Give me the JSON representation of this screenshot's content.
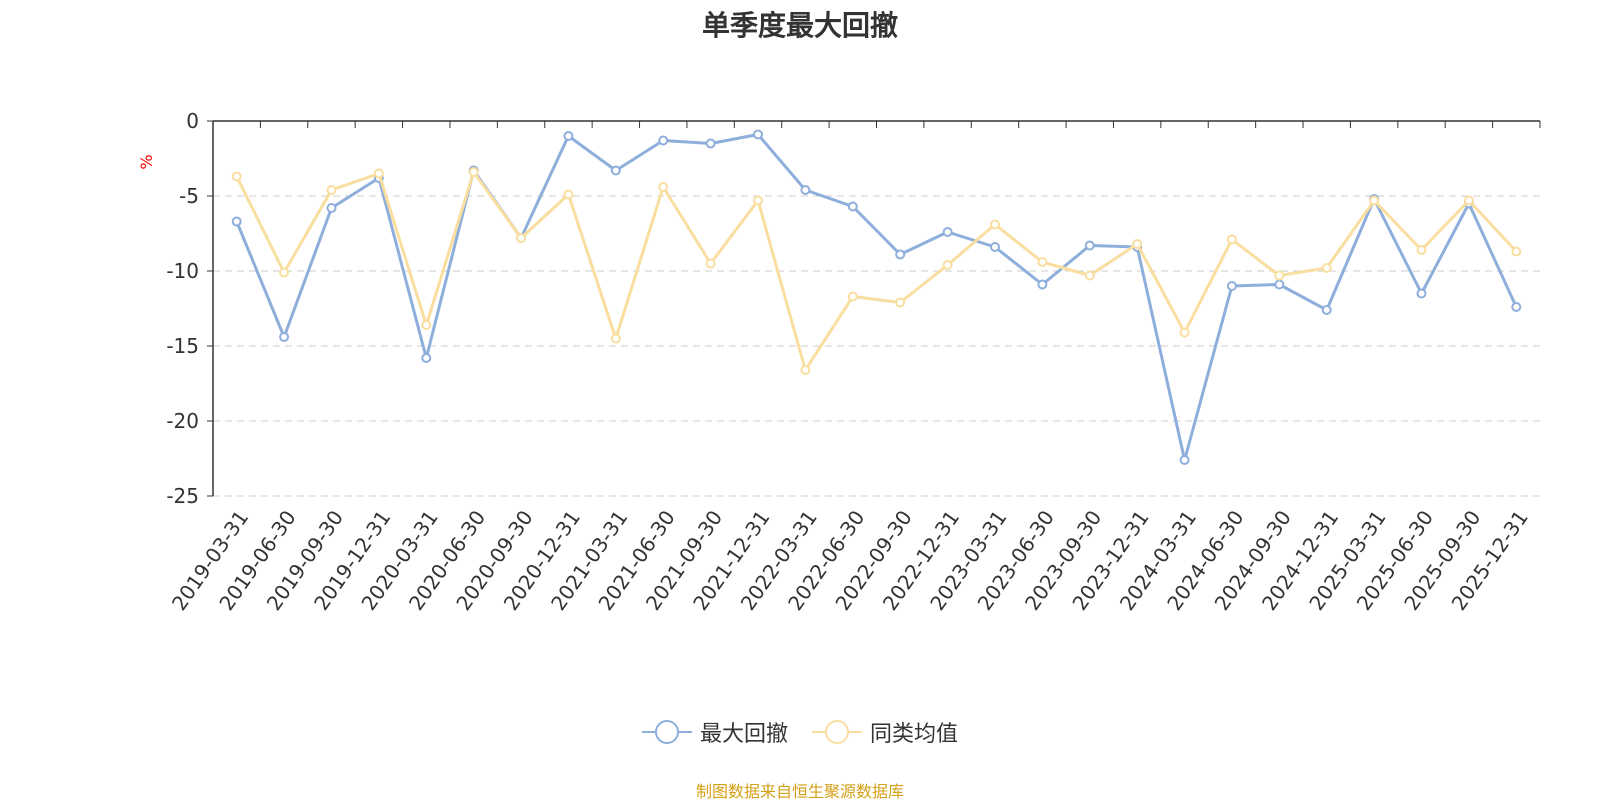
{
  "chart_data": {
    "type": "line",
    "title": "单季度最大回撤",
    "ylabel": "%",
    "ylim": [
      -25,
      0
    ],
    "yticks": [
      0,
      -5,
      -10,
      -15,
      -20,
      -25
    ],
    "grid": true,
    "legend_position": "bottom-center",
    "categories": [
      "2019-03-31",
      "2019-06-30",
      "2019-09-30",
      "2019-12-31",
      "2020-03-31",
      "2020-06-30",
      "2020-09-30",
      "2020-12-31",
      "2021-03-31",
      "2021-06-30",
      "2021-09-30",
      "2021-12-31",
      "2022-03-31",
      "2022-06-30",
      "2022-09-30",
      "2022-12-31",
      "2023-03-31",
      "2023-06-30",
      "2023-09-30",
      "2023-12-31",
      "2024-03-31",
      "2024-06-30",
      "2024-09-30",
      "2024-12-31",
      "2025-03-31",
      "2025-06-30",
      "2025-09-30",
      "2025-12-31"
    ],
    "series": [
      {
        "name": "最大回撤",
        "color": "#8eaedb",
        "values": [
          -6.7,
          -14.4,
          -5.8,
          -3.8,
          -15.8,
          -3.3,
          -7.8,
          -1.0,
          -3.3,
          -1.3,
          -1.5,
          -0.9,
          -4.6,
          -5.7,
          -8.9,
          -7.4,
          -8.4,
          -10.9,
          -8.3,
          -8.4,
          -22.6,
          -11.0,
          -10.9,
          -12.6,
          -5.2,
          -11.5,
          -5.5,
          -12.4
        ]
      },
      {
        "name": "同类均值",
        "color": "#f9dea0",
        "values": [
          -3.7,
          -10.1,
          -4.6,
          -3.5,
          -13.6,
          -3.4,
          -7.8,
          -4.9,
          -14.5,
          -4.4,
          -9.5,
          -5.3,
          -16.6,
          -11.7,
          -12.1,
          -9.6,
          -6.9,
          -9.4,
          -10.3,
          -8.2,
          -14.1,
          -7.9,
          -10.3,
          -9.8,
          -5.3,
          -8.6,
          -5.3,
          -8.7
        ]
      }
    ]
  },
  "source_note": "制图数据来自恒生聚源数据库"
}
